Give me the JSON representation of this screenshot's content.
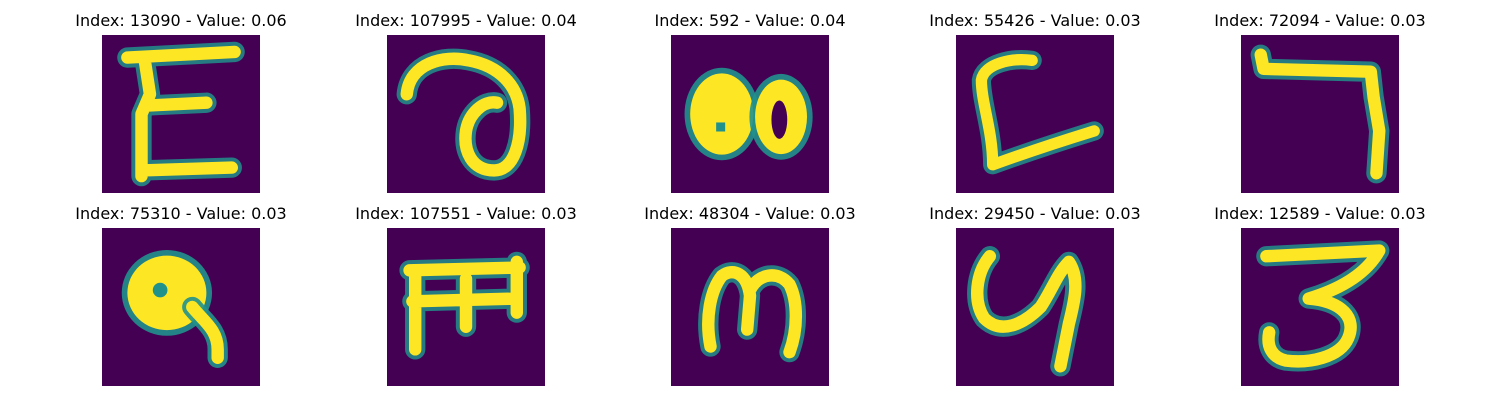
{
  "figure": {
    "background": "#ffffff",
    "cmap": {
      "low": "#440154",
      "mid": "#21918c",
      "high": "#fde725"
    },
    "items": [
      {
        "title": "Index: 13090 - Value: 0.06",
        "glyph": "glyph-e-like"
      },
      {
        "title": "Index: 107995 - Value: 0.04",
        "glyph": "glyph-loop-a"
      },
      {
        "title": "Index: 592 - Value: 0.04",
        "glyph": "glyph-double-blob"
      },
      {
        "title": "Index: 55426 - Value: 0.03",
        "glyph": "glyph-l-curve"
      },
      {
        "title": "Index: 72094 - Value: 0.03",
        "glyph": "glyph-hook-seven"
      },
      {
        "title": "Index: 75310 - Value: 0.03",
        "glyph": "glyph-blob-tail"
      },
      {
        "title": "Index: 107551 - Value: 0.03",
        "glyph": "glyph-comb-m"
      },
      {
        "title": "Index: 48304 - Value: 0.03",
        "glyph": "glyph-script-m"
      },
      {
        "title": "Index: 29450 - Value: 0.03",
        "glyph": "glyph-y-like"
      },
      {
        "title": "Index: 12589 - Value: 0.03",
        "glyph": "glyph-three-like"
      }
    ]
  }
}
